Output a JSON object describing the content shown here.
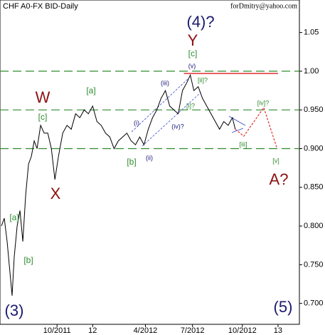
{
  "chart_data": {
    "type": "line",
    "title": "CHF A0-FX BID-Daily",
    "source": "forDmitry@yahoo.com",
    "x": [
      1,
      3,
      5,
      7,
      8.5,
      10,
      12,
      14,
      16,
      18,
      20,
      22,
      24,
      26,
      28.5,
      31,
      33.5,
      36,
      38.5,
      41,
      44,
      47,
      50,
      53,
      56,
      59,
      62,
      65,
      68,
      71,
      74,
      77,
      80,
      83,
      86,
      89,
      92,
      95,
      98,
      101,
      104,
      107,
      110,
      113,
      116,
      119,
      122,
      125,
      128,
      131,
      133.5,
      136,
      139,
      142,
      145,
      148,
      151,
      154,
      157,
      160,
      163,
      165
    ],
    "series": [
      {
        "color": "#000000",
        "values": [
          0.8,
          0.81,
          0.78,
          0.74,
          0.71,
          0.76,
          0.8,
          0.82,
          0.78,
          0.84,
          0.88,
          0.89,
          0.91,
          0.9,
          0.93,
          0.92,
          0.92,
          0.9,
          0.86,
          0.89,
          0.92,
          0.93,
          0.925,
          0.945,
          0.94,
          0.95,
          0.945,
          0.955,
          0.935,
          0.93,
          0.92,
          0.915,
          0.9,
          0.91,
          0.915,
          0.92,
          0.91,
          0.905,
          0.915,
          0.905,
          0.925,
          0.94,
          0.95,
          0.965,
          0.975,
          0.955,
          0.95,
          0.945,
          0.975,
          0.985,
          0.995,
          0.975,
          0.98,
          0.965,
          0.955,
          0.945,
          0.935,
          0.925,
          0.935,
          0.93,
          0.94,
          0.925
        ]
      }
    ],
    "projection": {
      "color": "#e03030",
      "x": [
        165,
        171,
        185,
        194
      ],
      "values": [
        0.925,
        0.916,
        0.953,
        0.902
      ]
    },
    "levels": [
      1.0,
      0.95,
      0.9
    ],
    "level_color": "#2e8b2e",
    "resistance": {
      "value": 0.997,
      "x": [
        129,
        195
      ],
      "color": "#e03030"
    },
    "xlim": [
      0,
      210
    ],
    "ylim": [
      0.673,
      1.092
    ],
    "xticks": [
      {
        "value": 40,
        "label": "10/2011"
      },
      {
        "value": 65,
        "label": "12"
      },
      {
        "value": 102,
        "label": "4/2012"
      },
      {
        "value": 135,
        "label": "7/2012"
      },
      {
        "value": 170,
        "label": "10/2012"
      },
      {
        "value": 195,
        "label": "13"
      }
    ],
    "yticks": [
      {
        "value": 1.05,
        "label": "1.05"
      },
      {
        "value": 1.0,
        "label": "1.00"
      },
      {
        "value": 0.95,
        "label": "0.950"
      },
      {
        "value": 0.9,
        "label": "0.900"
      },
      {
        "value": 0.85,
        "label": "0.850"
      },
      {
        "value": 0.8,
        "label": "0.800"
      },
      {
        "value": 0.75,
        "label": "0.750"
      },
      {
        "value": 0.7,
        "label": "0.700"
      }
    ],
    "annotations": [
      "(4)?",
      "Y",
      "[c]",
      "(v)",
      "W",
      "[c]",
      "[a]",
      "X",
      "[a]",
      "[b]",
      "(3)",
      "(iii)",
      "[ii]?",
      "(i)",
      "[i]?",
      "(iv)?",
      "[b]",
      "(ii)",
      "[iv]?",
      "[iii]",
      "[v]",
      "A?",
      "(5)"
    ]
  }
}
